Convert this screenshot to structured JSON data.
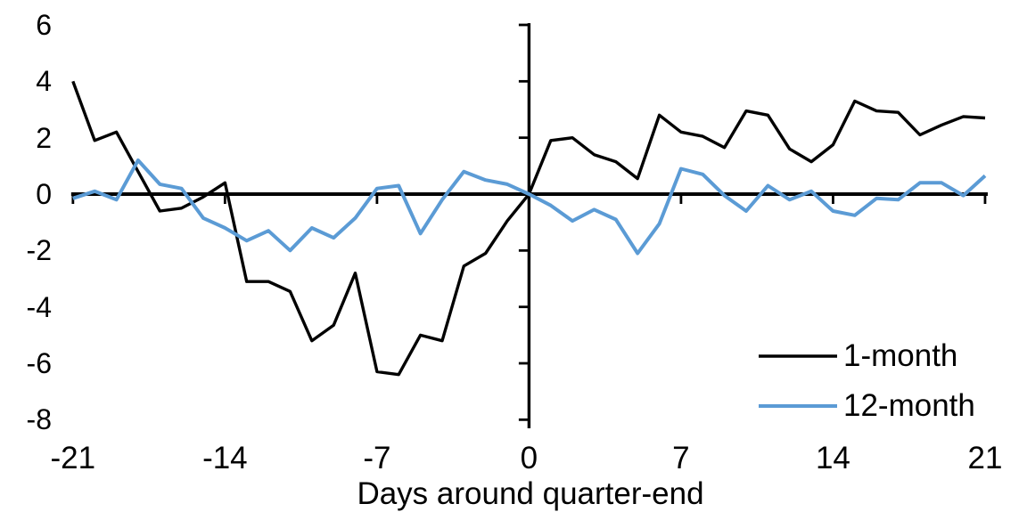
{
  "chart_data": {
    "type": "line",
    "title": "",
    "xlabel": "Days around quarter-end",
    "ylabel": "",
    "xlim": [
      -21,
      21
    ],
    "ylim": [
      -8,
      6
    ],
    "grid": false,
    "legend_position": "inside-lower-right",
    "axis_color": "#000000",
    "x_ticks": [
      -21,
      -14,
      -7,
      0,
      7,
      14,
      21
    ],
    "x_tick_labels": [
      "-21",
      "-14",
      "-7",
      "0",
      "7",
      "14",
      "21"
    ],
    "y_ticks": [
      6,
      4,
      2,
      0,
      -2,
      -4,
      -6,
      -8
    ],
    "y_tick_labels": [
      "6",
      "4",
      "2",
      "0",
      "-2",
      "-4",
      "-6",
      "-8"
    ],
    "x": [
      -21,
      -20,
      -19,
      -18,
      -17,
      -16,
      -15,
      -14,
      -13,
      -12,
      -11,
      -10,
      -9,
      -8,
      -7,
      -6,
      -5,
      -4,
      -3,
      -2,
      -1,
      0,
      1,
      2,
      3,
      4,
      5,
      6,
      7,
      8,
      9,
      10,
      11,
      12,
      13,
      14,
      15,
      16,
      17,
      18,
      19,
      20,
      21
    ],
    "series": [
      {
        "name": "1-month",
        "color": "#000000",
        "values": [
          4.0,
          1.9,
          2.2,
          0.8,
          -0.6,
          -0.5,
          -0.1,
          0.4,
          -3.1,
          -3.1,
          -3.45,
          -5.2,
          -4.65,
          -2.8,
          -6.3,
          -6.4,
          -5.0,
          -5.2,
          -2.55,
          -2.1,
          -0.95,
          0.0,
          1.9,
          2.0,
          1.4,
          1.15,
          0.55,
          2.8,
          2.2,
          2.05,
          1.65,
          2.95,
          2.8,
          1.6,
          1.15,
          1.75,
          3.3,
          2.95,
          2.9,
          2.1,
          2.45,
          2.75,
          2.7
        ]
      },
      {
        "name": "12-month",
        "color": "#5B9BD5",
        "values": [
          -0.15,
          0.1,
          -0.2,
          1.2,
          0.35,
          0.2,
          -0.85,
          -1.2,
          -1.65,
          -1.3,
          -2.0,
          -1.2,
          -1.55,
          -0.85,
          0.2,
          0.3,
          -1.4,
          -0.2,
          0.8,
          0.5,
          0.35,
          0.0,
          -0.4,
          -0.95,
          -0.55,
          -0.9,
          -2.1,
          -1.05,
          0.9,
          0.7,
          -0.05,
          -0.6,
          0.3,
          -0.2,
          0.1,
          -0.6,
          -0.75,
          -0.15,
          -0.2,
          0.4,
          0.4,
          -0.05,
          0.65
        ]
      }
    ]
  }
}
